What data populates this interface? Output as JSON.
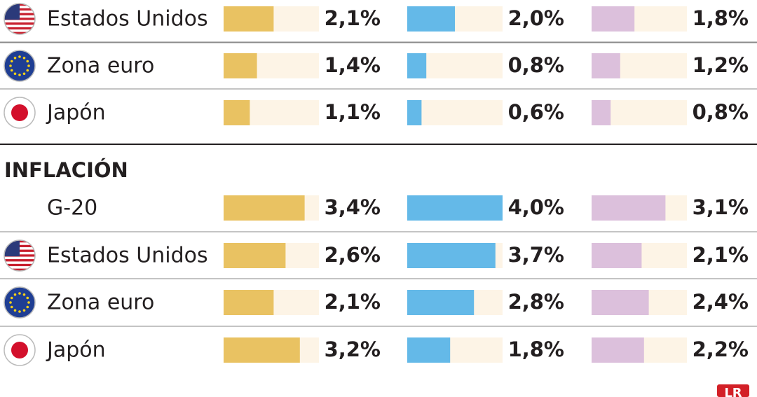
{
  "colors": [
    "#e9c262",
    "#64b9e8",
    "#dcc0dc"
  ],
  "track_color": "#fdf4e6",
  "xlim": [
    0,
    4
  ],
  "sections": [
    {
      "rows": [
        {
          "country": "Estados Unidos",
          "values": [
            2.1,
            2.0,
            1.8
          ],
          "value_labels": [
            "2,1%",
            "2,0%",
            "1,8%"
          ]
        },
        {
          "country": "Zona euro",
          "values": [
            1.4,
            0.8,
            1.2
          ],
          "value_labels": [
            "1,4%",
            "0,8%",
            "1,2%"
          ]
        },
        {
          "country": "Japón",
          "values": [
            1.1,
            0.6,
            0.8
          ],
          "value_labels": [
            "1,1%",
            "0,6%",
            "0,8%"
          ]
        }
      ]
    },
    {
      "title": "INFLACIÓN",
      "rows": [
        {
          "country": "G-20",
          "values": [
            3.4,
            4.0,
            3.1
          ],
          "value_labels": [
            "3,4%",
            "4,0%",
            "3,1%"
          ]
        },
        {
          "country": "Estados Unidos",
          "values": [
            2.6,
            3.7,
            2.1
          ],
          "value_labels": [
            "2,6%",
            "3,7%",
            "2,1%"
          ]
        },
        {
          "country": "Zona euro",
          "values": [
            2.1,
            2.8,
            2.4
          ],
          "value_labels": [
            "2,1%",
            "2,8%",
            "2,4%"
          ]
        },
        {
          "country": "Japón",
          "values": [
            3.2,
            1.8,
            2.2
          ],
          "value_labels": [
            "3,2%",
            "1,8%",
            "2,2%"
          ]
        }
      ]
    }
  ]
}
